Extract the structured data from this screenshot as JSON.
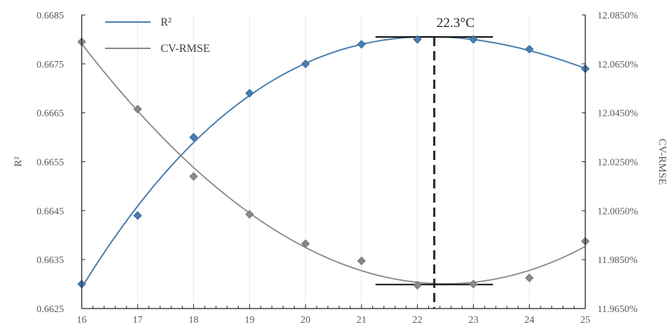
{
  "chart_data": {
    "type": "scatter",
    "x": [
      16,
      17,
      18,
      19,
      20,
      21,
      22,
      23,
      24,
      25
    ],
    "xlim": [
      16,
      25
    ],
    "xticks": [
      "16",
      "17",
      "18",
      "19",
      "20",
      "21",
      "22",
      "23",
      "24",
      "25"
    ],
    "ylabel_left": "R²",
    "ylabel_right": "CV-RMSE",
    "ylim_left": [
      0.6625,
      0.6685
    ],
    "ylim_right": [
      11.965,
      12.085
    ],
    "yticks_left": [
      "0.6625",
      "0.6635",
      "0.6645",
      "0.6655",
      "0.6665",
      "0.6675",
      "0.6685"
    ],
    "yticks_right": [
      "11.9650%",
      "11.9850%",
      "12.0050%",
      "12.0250%",
      "12.0450%",
      "12.0650%",
      "12.0850%"
    ],
    "grid": "vertical",
    "legend_position": "top-left",
    "series": [
      {
        "name": "R²",
        "axis": "left",
        "color": "#4a7eb0",
        "marker": "diamond",
        "values": [
          0.663,
          0.6644,
          0.666,
          0.6669,
          0.6675,
          0.6679,
          0.668,
          0.668,
          0.6678,
          0.6674
        ]
      },
      {
        "name": "CV-RMSE",
        "axis": "right",
        "color": "#888888",
        "marker": "diamond",
        "values": [
          12.074,
          12.0465,
          12.019,
          12.0035,
          11.9915,
          11.9845,
          11.9745,
          11.975,
          11.9775,
          11.9925
        ]
      }
    ],
    "annotation": {
      "text": "22.3°C",
      "x": 22.3,
      "upper_bar_value": 0.66805,
      "lower_bar_value": 11.9748,
      "bar_x_range": [
        21.25,
        23.35
      ]
    }
  }
}
